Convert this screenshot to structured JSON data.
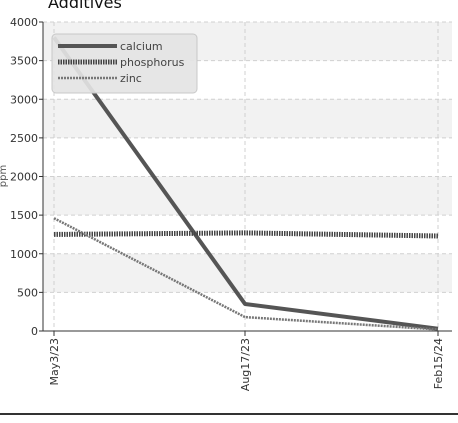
{
  "chart_data": {
    "type": "line",
    "title": "Additives",
    "xlabel": "",
    "ylabel": "ppm",
    "categories": [
      "May3/23",
      "Aug17/23",
      "Feb15/24"
    ],
    "ylim": [
      0,
      4000
    ],
    "yticks": [
      0,
      500,
      1000,
      1500,
      2000,
      2500,
      3000,
      3500,
      4000
    ],
    "grid": true,
    "legend_position": "top-left",
    "series": [
      {
        "name": "calcium",
        "values": [
          3800,
          350,
          30
        ],
        "color": "#555555",
        "style": "solid-thick"
      },
      {
        "name": "phosphorus",
        "values": [
          1250,
          1270,
          1230
        ],
        "color": "#444444",
        "style": "dotted-thick"
      },
      {
        "name": "zinc",
        "values": [
          1460,
          180,
          20
        ],
        "color": "#777777",
        "style": "dotted"
      }
    ]
  },
  "footer": {
    "divider_color": "#333333"
  }
}
